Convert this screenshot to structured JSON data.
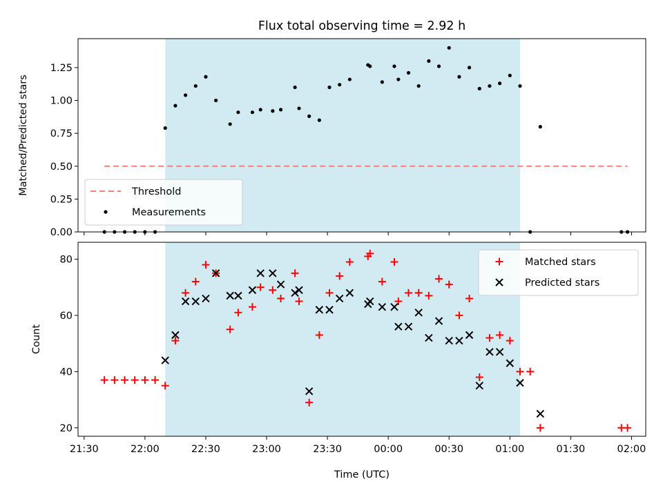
{
  "colors": {
    "threshold": "#f08080",
    "measurements": "#000000",
    "matched": "#ff0000",
    "predicted": "#000000",
    "shade": "#add8e6"
  },
  "chart_data": [
    {
      "type": "scatter",
      "title": "Flux total observing time = 2.92 h",
      "xlabel": "",
      "ylabel": "Matched/Predicted stars",
      "xlim": [
        "21:27",
        "02:07"
      ],
      "ylim": [
        0,
        1.47
      ],
      "yticks": [
        "0.00",
        "0.25",
        "0.50",
        "0.75",
        "1.00",
        "1.25"
      ],
      "shaded_interval": [
        "22:10",
        "01:05"
      ],
      "legend_position": "lower-left",
      "threshold": {
        "name": "Threshold",
        "style": "dashed",
        "value": 0.5,
        "x_range": [
          "21:40",
          "01:58"
        ]
      },
      "series": [
        {
          "name": "Measurements",
          "points": [
            [
              "21:40",
              0.0
            ],
            [
              "21:45",
              0.0
            ],
            [
              "21:50",
              0.0
            ],
            [
              "21:55",
              0.0
            ],
            [
              "22:00",
              0.0
            ],
            [
              "22:05",
              0.0
            ],
            [
              "22:10",
              0.79
            ],
            [
              "22:15",
              0.96
            ],
            [
              "22:20",
              1.04
            ],
            [
              "22:25",
              1.11
            ],
            [
              "22:30",
              1.18
            ],
            [
              "22:35",
              1.0
            ],
            [
              "22:42",
              0.82
            ],
            [
              "22:46",
              0.91
            ],
            [
              "22:53",
              0.91
            ],
            [
              "22:57",
              0.93
            ],
            [
              "23:03",
              0.92
            ],
            [
              "23:07",
              0.93
            ],
            [
              "23:14",
              1.1
            ],
            [
              "23:16",
              0.94
            ],
            [
              "23:21",
              0.88
            ],
            [
              "23:26",
              0.85
            ],
            [
              "23:31",
              1.1
            ],
            [
              "23:36",
              1.12
            ],
            [
              "23:41",
              1.16
            ],
            [
              "23:50",
              1.27
            ],
            [
              "23:51",
              1.26
            ],
            [
              "23:57",
              1.14
            ],
            [
              "00:03",
              1.26
            ],
            [
              "00:05",
              1.16
            ],
            [
              "00:10",
              1.21
            ],
            [
              "00:15",
              1.11
            ],
            [
              "00:20",
              1.3
            ],
            [
              "00:25",
              1.26
            ],
            [
              "00:30",
              1.4
            ],
            [
              "00:35",
              1.18
            ],
            [
              "00:40",
              1.25
            ],
            [
              "00:45",
              1.09
            ],
            [
              "00:50",
              1.11
            ],
            [
              "00:55",
              1.13
            ],
            [
              "01:00",
              1.19
            ],
            [
              "01:05",
              1.11
            ],
            [
              "01:10",
              0.0
            ],
            [
              "01:15",
              0.8
            ],
            [
              "01:55",
              0.0
            ],
            [
              "01:58",
              0.0
            ]
          ]
        }
      ]
    },
    {
      "type": "scatter",
      "title": "",
      "xlabel": "Time (UTC)",
      "ylabel": "Count",
      "xlim": [
        "21:27",
        "02:07"
      ],
      "ylim": [
        17,
        86
      ],
      "yticks": [
        "20",
        "40",
        "60",
        "80"
      ],
      "xticks": [
        "21:30",
        "22:00",
        "22:30",
        "23:00",
        "23:30",
        "00:00",
        "00:30",
        "01:00",
        "01:30",
        "02:00"
      ],
      "shaded_interval": [
        "22:10",
        "01:05"
      ],
      "legend_position": "upper-right",
      "series": [
        {
          "name": "Matched stars",
          "marker": "plus",
          "points": [
            [
              "21:40",
              37
            ],
            [
              "21:45",
              37
            ],
            [
              "21:50",
              37
            ],
            [
              "21:55",
              37
            ],
            [
              "22:00",
              37
            ],
            [
              "22:05",
              37
            ],
            [
              "22:10",
              35
            ],
            [
              "22:15",
              51
            ],
            [
              "22:20",
              68
            ],
            [
              "22:25",
              72
            ],
            [
              "22:30",
              78
            ],
            [
              "22:35",
              75
            ],
            [
              "22:42",
              55
            ],
            [
              "22:46",
              61
            ],
            [
              "22:53",
              63
            ],
            [
              "22:57",
              70
            ],
            [
              "23:03",
              69
            ],
            [
              "23:07",
              66
            ],
            [
              "23:14",
              75
            ],
            [
              "23:16",
              65
            ],
            [
              "23:21",
              29
            ],
            [
              "23:26",
              53
            ],
            [
              "23:31",
              68
            ],
            [
              "23:36",
              74
            ],
            [
              "23:41",
              79
            ],
            [
              "23:50",
              81
            ],
            [
              "23:51",
              82
            ],
            [
              "23:57",
              72
            ],
            [
              "00:03",
              79
            ],
            [
              "00:05",
              65
            ],
            [
              "00:10",
              68
            ],
            [
              "00:15",
              68
            ],
            [
              "00:20",
              67
            ],
            [
              "00:25",
              73
            ],
            [
              "00:30",
              71
            ],
            [
              "00:35",
              60
            ],
            [
              "00:40",
              66
            ],
            [
              "00:45",
              38
            ],
            [
              "00:50",
              52
            ],
            [
              "00:55",
              53
            ],
            [
              "01:00",
              51
            ],
            [
              "01:05",
              40
            ],
            [
              "01:10",
              40
            ],
            [
              "01:15",
              20
            ],
            [
              "01:55",
              20
            ],
            [
              "01:58",
              20
            ]
          ]
        },
        {
          "name": "Predicted stars",
          "marker": "x",
          "points": [
            [
              "22:10",
              44
            ],
            [
              "22:15",
              53
            ],
            [
              "22:20",
              65
            ],
            [
              "22:25",
              65
            ],
            [
              "22:30",
              66
            ],
            [
              "22:35",
              75
            ],
            [
              "22:42",
              67
            ],
            [
              "22:46",
              67
            ],
            [
              "22:53",
              69
            ],
            [
              "22:57",
              75
            ],
            [
              "23:03",
              75
            ],
            [
              "23:07",
              71
            ],
            [
              "23:14",
              68
            ],
            [
              "23:16",
              69
            ],
            [
              "23:21",
              33
            ],
            [
              "23:26",
              62
            ],
            [
              "23:31",
              62
            ],
            [
              "23:36",
              66
            ],
            [
              "23:41",
              68
            ],
            [
              "23:50",
              64
            ],
            [
              "23:51",
              65
            ],
            [
              "23:57",
              63
            ],
            [
              "00:03",
              63
            ],
            [
              "00:05",
              56
            ],
            [
              "00:10",
              56
            ],
            [
              "00:15",
              61
            ],
            [
              "00:20",
              52
            ],
            [
              "00:25",
              58
            ],
            [
              "00:30",
              51
            ],
            [
              "00:35",
              51
            ],
            [
              "00:40",
              53
            ],
            [
              "00:45",
              35
            ],
            [
              "00:50",
              47
            ],
            [
              "00:55",
              47
            ],
            [
              "01:00",
              43
            ],
            [
              "01:05",
              36
            ],
            [
              "01:15",
              25
            ]
          ]
        }
      ]
    }
  ]
}
